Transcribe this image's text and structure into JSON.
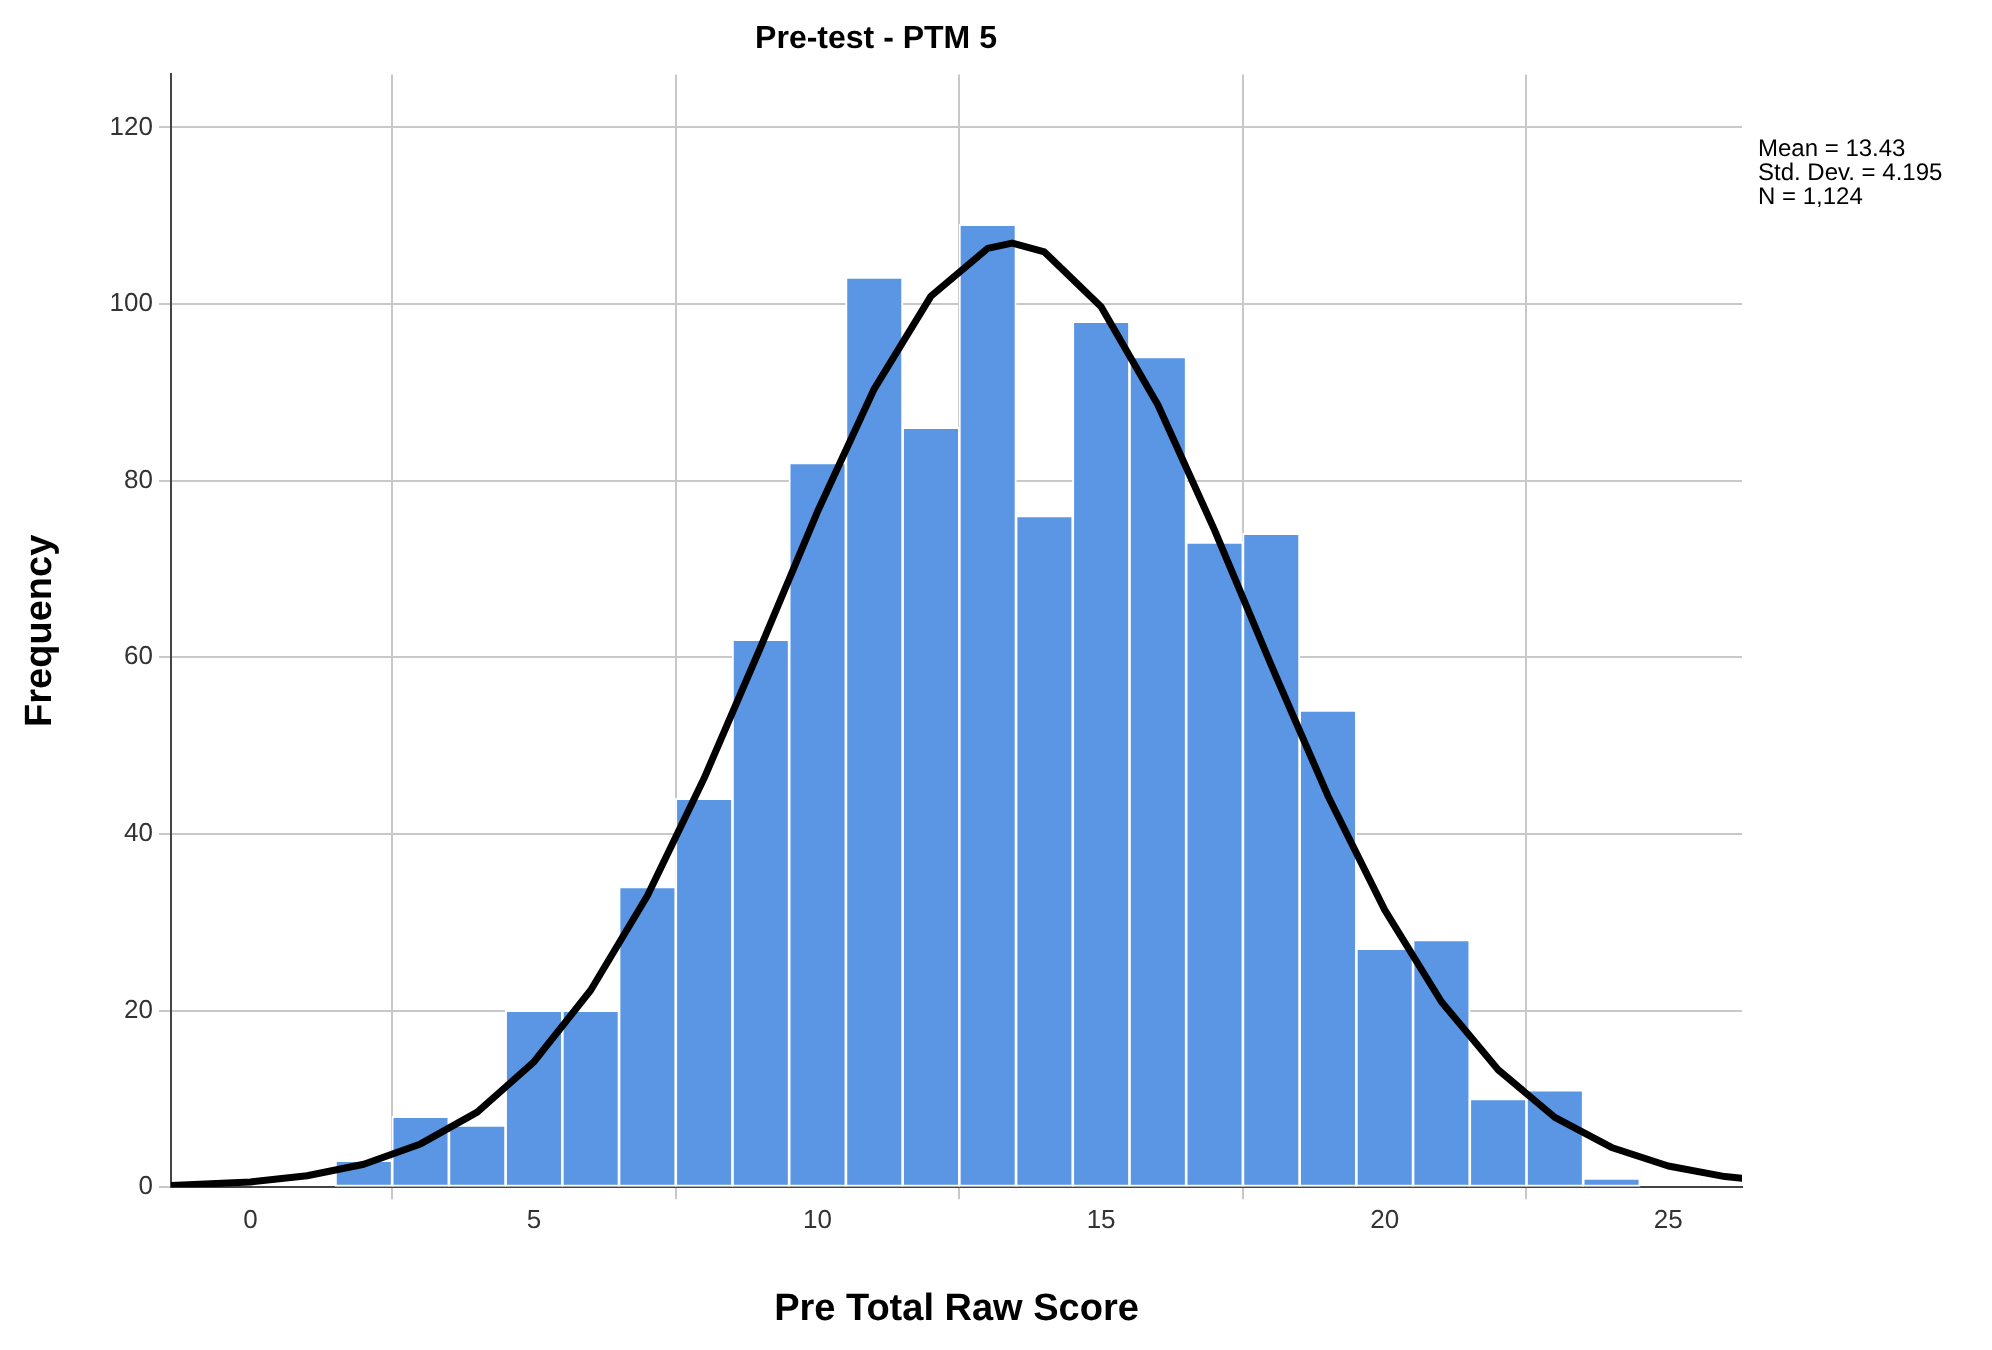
{
  "chart_data": {
    "type": "histogram",
    "title": "Pre-test - PTM 5",
    "xlabel": "Pre Total Raw Score",
    "ylabel": "Frequency",
    "annotations": [
      "Mean = 13.43\nStd. Dev. = 4.195\nN = 1,124"
    ],
    "bins": [
      1.5,
      2.5,
      3.5,
      4.5,
      5.5,
      6.5,
      7.5,
      8.5,
      9.5,
      10.5,
      11.5,
      12.5,
      13.5,
      14.5,
      15.5,
      16.5,
      17.5,
      18.5,
      19.5,
      20.5,
      21.5,
      22.5,
      23.5,
      24.5
    ],
    "series": [
      {
        "color": "#5a96e3",
        "values": [
          3,
          8,
          7,
          20,
          20,
          34,
          44,
          62,
          82,
          103,
          86,
          109,
          76,
          98,
          94,
          73,
          74,
          54,
          27,
          28,
          10,
          11,
          1
        ]
      },
      {
        "type": "line",
        "color": "#000000",
        "x": [
          -1.4,
          0,
          1,
          2,
          3,
          4,
          5,
          6,
          7,
          8,
          9,
          10,
          11,
          12,
          13,
          13.43,
          14,
          15,
          16,
          17,
          18,
          19,
          20,
          21,
          22,
          23,
          24,
          25,
          26,
          26.3
        ],
        "values": [
          0.2,
          0.6,
          1.3,
          2.6,
          4.9,
          8.5,
          14.2,
          22.3,
          33,
          46.3,
          61.2,
          76.5,
          90.4,
          100.9,
          106.3,
          106.9,
          105.9,
          99.7,
          88.6,
          74.4,
          59.1,
          44.3,
          31.4,
          21,
          13.3,
          7.9,
          4.5,
          2.4,
          1.2,
          1
        ]
      }
    ],
    "xlim": [
      -1.4,
      26.3
    ],
    "xticks": [
      0,
      5,
      10,
      15,
      20,
      25
    ],
    "ylim": [
      0,
      126
    ],
    "yticks": [
      0,
      20,
      40,
      60,
      80,
      100,
      120
    ],
    "grid": true,
    "legend": false,
    "marker": "none"
  }
}
